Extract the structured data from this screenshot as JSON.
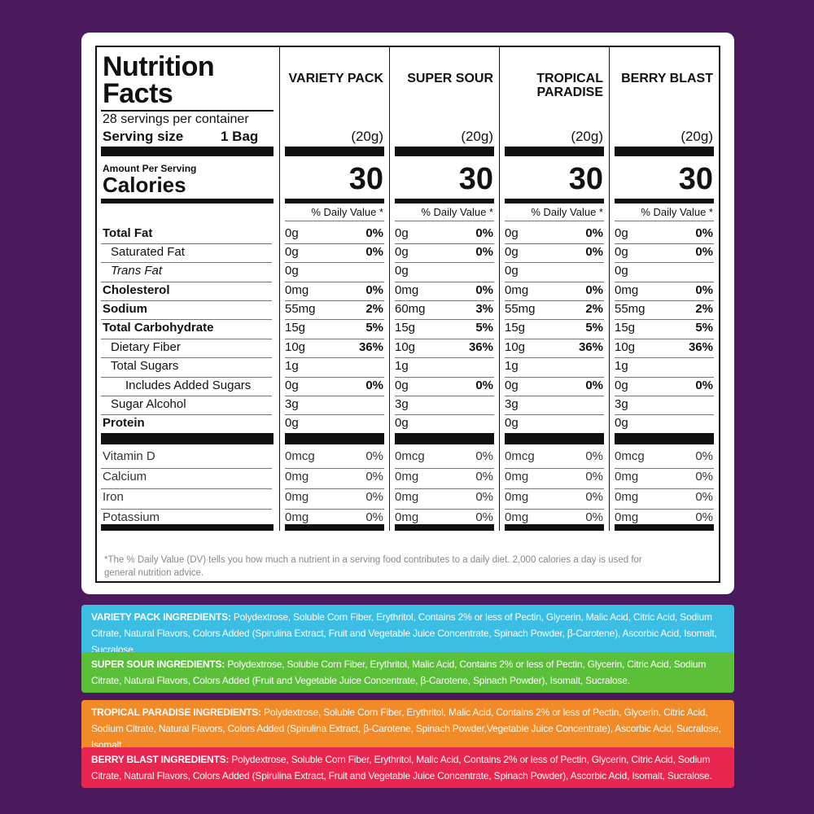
{
  "title": "Nutrition Facts",
  "servings_per_container": "28 servings per container",
  "serving_size_label": "Serving size",
  "serving_size_value": "1 Bag",
  "amount_per_serving": "Amount Per Serving",
  "calories_label": "Calories",
  "dv_header": "% Daily Value *",
  "nutrient_labels": {
    "total_fat": "Total Fat",
    "saturated_fat": "Saturated Fat",
    "trans_fat": "Trans Fat",
    "cholesterol": "Cholesterol",
    "sodium": "Sodium",
    "total_carb": "Total Carbohydrate",
    "dietary_fiber": "Dietary Fiber",
    "total_sugars": "Total Sugars",
    "added_sugars": "Includes Added Sugars",
    "sugar_alcohol": "Sugar Alcohol",
    "protein": "Protein",
    "vitamin_d": "Vitamin D",
    "calcium": "Calcium",
    "iron": "Iron",
    "potassium": "Potassium"
  },
  "products": [
    {
      "name": "Variety Pack",
      "serving": "(20g)",
      "calories": "30",
      "total_fat": "0g",
      "total_fat_dv": "0%",
      "saturated_fat": "0g",
      "saturated_fat_dv": "0%",
      "trans_fat": "0g",
      "cholesterol": "0mg",
      "cholesterol_dv": "0%",
      "sodium": "55mg",
      "sodium_dv": "2%",
      "total_carb": "15g",
      "total_carb_dv": "5%",
      "dietary_fiber": "10g",
      "dietary_fiber_dv": "36%",
      "total_sugars": "1g",
      "added_sugars": "0g",
      "added_sugars_dv": "0%",
      "sugar_alcohol": "3g",
      "protein": "0g",
      "vitamin_d": "0mcg",
      "vitamin_d_dv": "0%",
      "calcium": "0mg",
      "calcium_dv": "0%",
      "iron": "0mg",
      "iron_dv": "0%",
      "potassium": "0mg",
      "potassium_dv": "0%"
    },
    {
      "name": "Super Sour",
      "serving": "(20g)",
      "calories": "30",
      "total_fat": "0g",
      "total_fat_dv": "0%",
      "saturated_fat": "0g",
      "saturated_fat_dv": "0%",
      "trans_fat": "0g",
      "cholesterol": "0mg",
      "cholesterol_dv": "0%",
      "sodium": "60mg",
      "sodium_dv": "3%",
      "total_carb": "15g",
      "total_carb_dv": "5%",
      "dietary_fiber": "10g",
      "dietary_fiber_dv": "36%",
      "total_sugars": "1g",
      "added_sugars": "0g",
      "added_sugars_dv": "0%",
      "sugar_alcohol": "3g",
      "protein": "0g",
      "vitamin_d": "0mcg",
      "vitamin_d_dv": "0%",
      "calcium": "0mg",
      "calcium_dv": "0%",
      "iron": "0mg",
      "iron_dv": "0%",
      "potassium": "0mg",
      "potassium_dv": "0%"
    },
    {
      "name": "Tropical Paradise",
      "serving": "(20g)",
      "calories": "30",
      "total_fat": "0g",
      "total_fat_dv": "0%",
      "saturated_fat": "0g",
      "saturated_fat_dv": "0%",
      "trans_fat": "0g",
      "cholesterol": "0mg",
      "cholesterol_dv": "0%",
      "sodium": "55mg",
      "sodium_dv": "2%",
      "total_carb": "15g",
      "total_carb_dv": "5%",
      "dietary_fiber": "10g",
      "dietary_fiber_dv": "36%",
      "total_sugars": "1g",
      "added_sugars": "0g",
      "added_sugars_dv": "0%",
      "sugar_alcohol": "3g",
      "protein": "0g",
      "vitamin_d": "0mcg",
      "vitamin_d_dv": "0%",
      "calcium": "0mg",
      "calcium_dv": "0%",
      "iron": "0mg",
      "iron_dv": "0%",
      "potassium": "0mg",
      "potassium_dv": "0%"
    },
    {
      "name": "Berry Blast",
      "serving": "(20g)",
      "calories": "30",
      "total_fat": "0g",
      "total_fat_dv": "0%",
      "saturated_fat": "0g",
      "saturated_fat_dv": "0%",
      "trans_fat": "0g",
      "cholesterol": "0mg",
      "cholesterol_dv": "0%",
      "sodium": "55mg",
      "sodium_dv": "2%",
      "total_carb": "15g",
      "total_carb_dv": "5%",
      "dietary_fiber": "10g",
      "dietary_fiber_dv": "36%",
      "total_sugars": "1g",
      "added_sugars": "0g",
      "added_sugars_dv": "0%",
      "sugar_alcohol": "3g",
      "protein": "0g",
      "vitamin_d": "0mcg",
      "vitamin_d_dv": "0%",
      "calcium": "0mg",
      "calcium_dv": "0%",
      "iron": "0mg",
      "iron_dv": "0%",
      "potassium": "0mg",
      "potassium_dv": "0%"
    }
  ],
  "footnote": "*The % Daily Value (DV) tells you how much a nutrient in a serving food contributes to a daily diet. 2,000 calories a day is used for general nutrition advice.",
  "ingredients": [
    {
      "label": "VARIETY PACK INGREDIENTS:",
      "text": " Polydextrose, Soluble Corn Fiber, Erythritol, Contains 2% or less of Pectin, Glycerin, Malic Acid, Citric Acid, Sodium Citrate, Natural Flavors, Colors Added (Spirulina Extract, Fruit and Vegetable Juice Concentrate, Spinach Powder, β-Carotene), Ascorbic Acid, Isomalt, Sucralose.",
      "color": "#3cbde3"
    },
    {
      "label": "SUPER SOUR INGREDIENTS:",
      "text": " Polydextrose, Soluble Corn Fiber, Erythritol, Malic Acid, Contains 2% or less of Pectin, Glycerin, Citric Acid, Sodium Citrate, Natural Flavors, Colors Added (Fruit and Vegetable Juice Concentrate, β-Carotene, Spinach Powder), Isomalt, Sucralose.",
      "color": "#5cbf3a"
    },
    {
      "label": "TROPICAL PARADISE INGREDIENTS:",
      "text": " Polydextrose, Soluble Corn Fiber, Erythritol, Malic Acid, Contains 2% or less of Pectin, Glycerin, Citric Acid, Sodium Citrate, Natural Flavors, Colors Added (Spirulina Extract, β-Carotene, Spinach Powder,Vegetable Juice Concentrate), Ascorbic Acid, Sucralose, Isomalt.",
      "color": "#f38a28"
    },
    {
      "label": "BERRY BLAST INGREDIENTS:",
      "text": " Polydextrose, Soluble Corn Fiber, Erythritol, Malic Acid, Contains 2% or less of Pectin, Glycerin, Citric Acid, Sodium Citrate, Natural Flavors, Colors Added (Spirulina Extract, Fruit and Vegetable Juice Concentrate, Spinach Powder), Ascorbic Acid, Isomalt, Sucralose.",
      "color": "#e8264f"
    }
  ],
  "colors": {
    "background": "#4a1a5c",
    "card": "#ffffff",
    "ink": "#111111"
  }
}
